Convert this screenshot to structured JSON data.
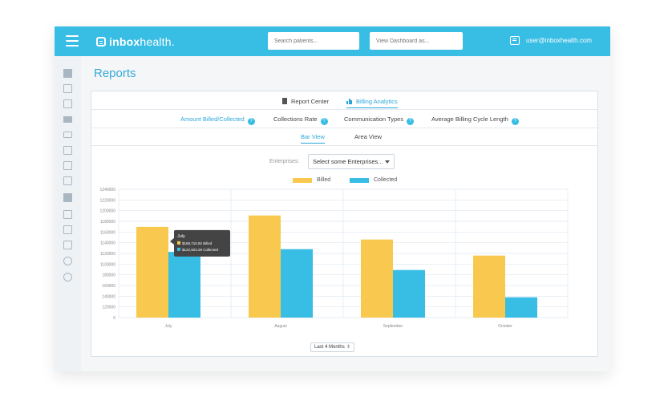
{
  "header": {
    "logo_bold": "inbox",
    "logo_light": "health.",
    "search_placeholder": "Search patients...",
    "view_as_placeholder": "View Dashboard as...",
    "user_email": "user@inboxhealth.com"
  },
  "page": {
    "title": "Reports"
  },
  "tabs_top": [
    {
      "label": "Report Center",
      "icon": "document-icon",
      "active": false
    },
    {
      "label": "Billing Analytics",
      "icon": "bar-chart-icon",
      "active": true
    }
  ],
  "tabs_metrics": [
    {
      "label": "Amount Billed/Collected",
      "active": true
    },
    {
      "label": "Collections Rate",
      "active": false
    },
    {
      "label": "Communication Types",
      "active": false
    },
    {
      "label": "Average Billing Cycle Length",
      "active": false
    }
  ],
  "tabs_view": [
    {
      "label": "Bar View",
      "active": true
    },
    {
      "label": "Area View",
      "active": false
    }
  ],
  "filters": {
    "enterprises_label": "Enterprises:",
    "enterprises_value": "Select some Enterprises..."
  },
  "range": {
    "value": "Last 4 Months",
    "caret": "⇕"
  },
  "tooltip": {
    "title": "July",
    "billed_text": "$169,710.92 Billed",
    "collected_text": "$122,923.29 Collected"
  },
  "colors": {
    "accent": "#38bde4",
    "billed": "#f9c94f",
    "collected": "#38bde4"
  },
  "chart_data": {
    "type": "bar",
    "categories": [
      "July",
      "August",
      "September",
      "October"
    ],
    "series": [
      {
        "name": "Billed",
        "values": [
          169710.92,
          191000,
          146000,
          116000
        ]
      },
      {
        "name": "Collected",
        "values": [
          122923.29,
          128000,
          89000,
          38000
        ]
      }
    ],
    "ytick_labels": [
      "0",
      "120000",
      "140000",
      "160000",
      "180000",
      "1100000",
      "1120000",
      "1140000",
      "1160000",
      "1180000",
      "1200000",
      "1220000",
      "1240000"
    ],
    "ylim": [
      0,
      240000
    ],
    "grid": true,
    "legend": "top-center"
  }
}
